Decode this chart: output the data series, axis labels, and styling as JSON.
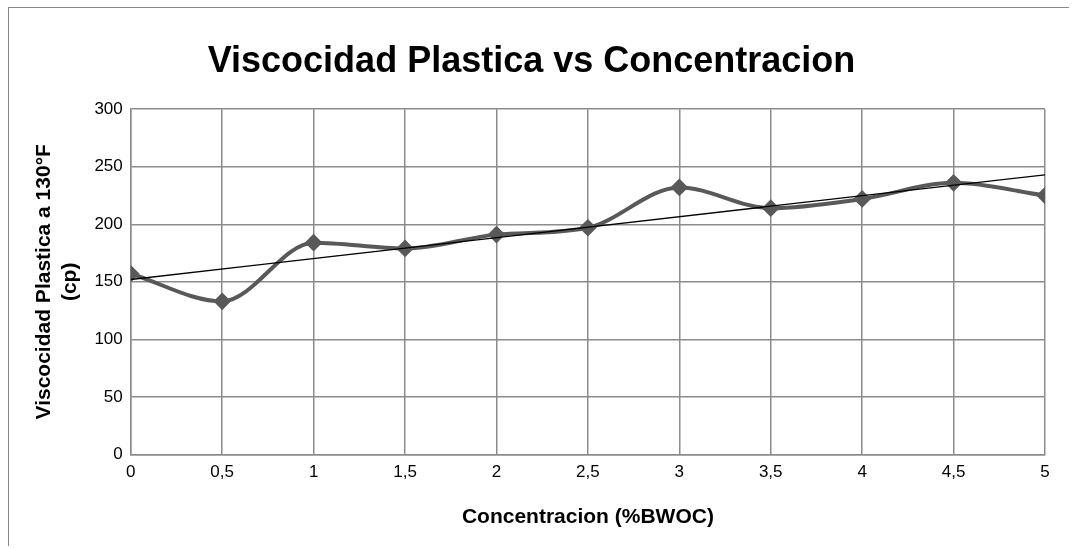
{
  "chart_data": {
    "type": "line",
    "title": "Viscocidad Plastica vs Concentracion",
    "xlabel": "Concentracion (%BWOC)",
    "ylabel": "Viscocidad Plastica a 130°F (cp)",
    "x": [
      0,
      0.5,
      1,
      1.5,
      2,
      2.5,
      3,
      3.5,
      4,
      4.5,
      5
    ],
    "series": [
      {
        "color": "#595959",
        "values": [
          157,
          133,
          184,
          179,
          191,
          197,
          232,
          214,
          222,
          236,
          225
        ],
        "marker": "diamond"
      },
      {
        "type": "line",
        "color": "#000000",
        "x": [
          0,
          5
        ],
        "values": [
          152,
          243
        ],
        "marker": "none"
      }
    ],
    "xlim": [
      0,
      5
    ],
    "xticks": [
      0,
      {
        "value": 0.5,
        "label": "0,5"
      },
      1,
      {
        "value": 1.5,
        "label": "1,5"
      },
      2,
      {
        "value": 2.5,
        "label": "2,5"
      },
      3,
      {
        "value": 3.5,
        "label": "3,5"
      },
      4,
      {
        "value": 4.5,
        "label": "4,5"
      },
      5
    ],
    "ylim": [
      0,
      300
    ],
    "yticks": [
      0,
      50,
      100,
      150,
      200,
      250,
      300
    ],
    "grid": true,
    "legend": false
  }
}
